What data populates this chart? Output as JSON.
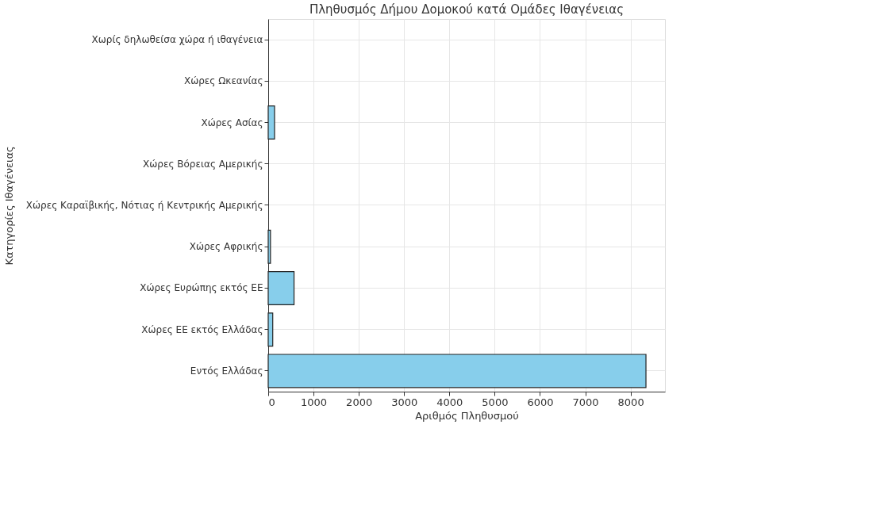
{
  "chart_data": {
    "type": "bar",
    "orientation": "horizontal",
    "title": "Πληθυσμός Δήμου Δομοκού κατά Ομάδες Ιθαγένειας",
    "xlabel": "Αριθμός Πληθυσμού",
    "ylabel": "Κατηγορίες Ιθαγένειας",
    "categories": [
      "Χωρίς δηλωθείσα χώρα ή ιθαγένεια",
      "Χώρες Ωκεανίας",
      "Χώρες Ασίας",
      "Χώρες Βόρειας Αμερικής",
      "Χώρες Καραϊβικής, Νότιας ή Κεντρικής Αμερικής",
      "Χώρες Αφρικής",
      "Χώρες Ευρώπης εκτός ΕΕ",
      "Χώρες ΕΕ εκτός Ελλάδας",
      "Εντός Ελλάδας"
    ],
    "values": [
      0,
      0,
      140,
      0,
      0,
      50,
      570,
      100,
      8340
    ],
    "color": "#87ceeb",
    "xlim": [
      0,
      8760
    ],
    "xticks": [
      0,
      1000,
      2000,
      3000,
      4000,
      5000,
      6000,
      7000,
      8000
    ],
    "grid": true
  }
}
